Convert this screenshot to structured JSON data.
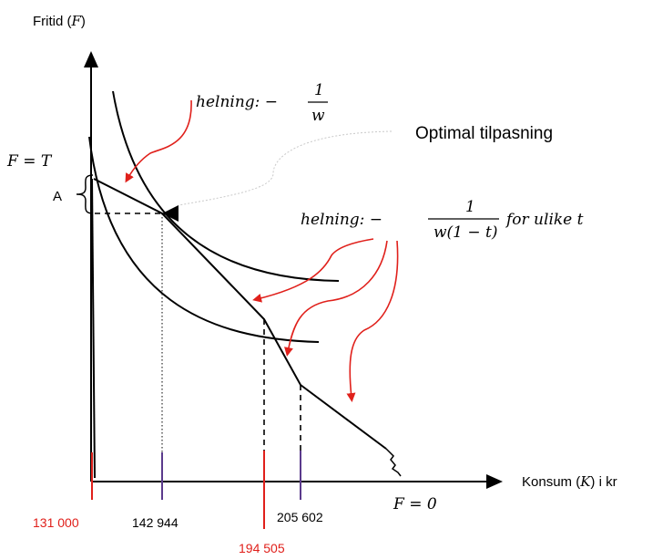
{
  "axes": {
    "y_label": "Fritid (",
    "y_var": "F",
    "y_label_close": ")",
    "x_label_prefix": "Konsum (",
    "x_var": "K",
    "x_label_suffix": ") i kr"
  },
  "labels": {
    "slope_top_prefix": "helning: −",
    "slope_top_num": "1",
    "slope_top_den": "w",
    "optimal": "Optimal tilpasning",
    "f_equals_t": "F = T",
    "a": "A",
    "slope_mid_prefix": "helning: −",
    "slope_mid_num": "1",
    "slope_mid_den": "w(1 − t)",
    "slope_mid_suffix": "for ulike t",
    "f_equals_0": "F = 0"
  },
  "ticks": [
    {
      "label": "131 000",
      "color": "#e0201b"
    },
    {
      "label": "142 944",
      "color": "#000000"
    },
    {
      "label": "194 505",
      "color": "#e0201b"
    },
    {
      "label": "205 602",
      "color": "#000000"
    }
  ],
  "colors": {
    "red": "#e0201b",
    "purple": "#5b3a8c",
    "black": "#000000",
    "gray": "#c9c9c9"
  }
}
